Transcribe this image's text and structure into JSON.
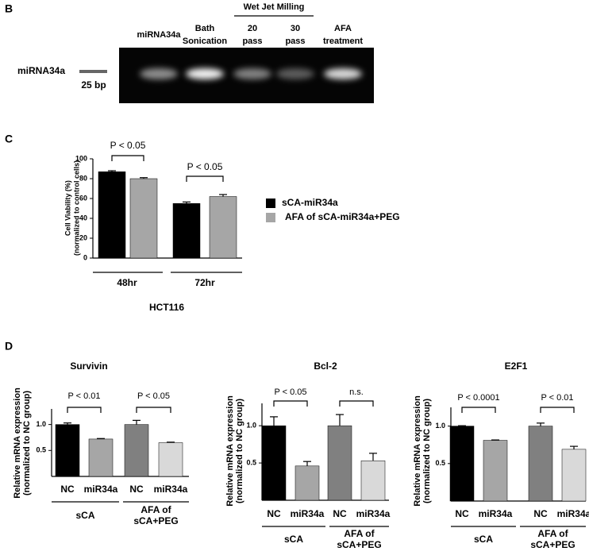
{
  "gel": {
    "label": "B",
    "header": "Wet Jet Milling",
    "lanes": [
      [
        "miRNA34a"
      ],
      [
        "Bath",
        "Sonication"
      ],
      [
        "20",
        "pass"
      ],
      [
        "30",
        "pass"
      ],
      [
        "AFA",
        "treatment"
      ]
    ],
    "marker_label": "miRNA34a",
    "marker_size": "25 bp"
  },
  "chart_data": [
    {
      "type": "bar",
      "panel": "C",
      "ylabel": [
        "Cell Viability (%)",
        "(normalized to control cells)"
      ],
      "xlabel": "HCT116",
      "categories": [
        "48hr",
        "72hr"
      ],
      "series": [
        {
          "name": "sCA-miR34a",
          "color": "#000000",
          "values": [
            87,
            55
          ],
          "errors": [
            1,
            1.5
          ]
        },
        {
          "name": "AFA of sCA-miR34a+PEG",
          "color": "#a6a6a6",
          "values": [
            80,
            62
          ],
          "errors": [
            1,
            2
          ]
        }
      ],
      "ylim": [
        0,
        100
      ],
      "yticks": [
        0,
        20,
        40,
        60,
        80,
        100
      ],
      "annotations": [
        "P < 0.05",
        "P < 0.05"
      ]
    },
    {
      "type": "bar",
      "panel": "D",
      "title": "Survivin",
      "ylabel": [
        "Relative mRNA expression",
        "(normalized to NC group)"
      ],
      "categories": [
        "NC",
        "miR34a",
        "NC",
        "miR34a"
      ],
      "groups": [
        [
          "sCA"
        ],
        [
          "AFA of",
          "sCA+PEG"
        ]
      ],
      "values": [
        1.0,
        0.72,
        1.0,
        0.65
      ],
      "errors": [
        0.03,
        0.01,
        0.08,
        0.01
      ],
      "colors": [
        "#000000",
        "#a6a6a6",
        "#808080",
        "#d9d9d9"
      ],
      "ylim": [
        0,
        1.3
      ],
      "yticks": [
        0.5,
        {
          "value": 1,
          "label": "1.0"
        }
      ],
      "annotations": [
        "P < 0.01",
        "P < 0.05"
      ]
    },
    {
      "type": "bar",
      "title": "Bcl-2",
      "ylabel": [
        "Relative mRNA expression",
        "(normalized to NC group)"
      ],
      "categories": [
        "NC",
        "miR34a",
        "NC",
        "miR34a"
      ],
      "groups": [
        [
          "sCA"
        ],
        [
          "AFA of",
          "sCA+PEG"
        ]
      ],
      "values": [
        1.0,
        0.46,
        1.0,
        0.53
      ],
      "errors": [
        0.12,
        0.06,
        0.15,
        0.1
      ],
      "colors": [
        "#000000",
        "#a6a6a6",
        "#808080",
        "#d9d9d9"
      ],
      "ylim": [
        0,
        1.3
      ],
      "yticks": [
        0.5,
        {
          "value": 1,
          "label": "1.0"
        }
      ],
      "annotations": [
        "P < 0.05",
        "n.s."
      ]
    },
    {
      "type": "bar",
      "title": "E2F1",
      "ylabel": [
        "Relative mRNA expression",
        "(normalized to NC group)"
      ],
      "categories": [
        "NC",
        "miR34a",
        "NC",
        "miR34a"
      ],
      "groups": [
        [
          "sCA"
        ],
        [
          "AFA of",
          "sCA+PEG"
        ]
      ],
      "values": [
        1.0,
        0.81,
        1.0,
        0.69
      ],
      "errors": [
        0.005,
        0.005,
        0.04,
        0.04
      ],
      "colors": [
        "#000000",
        "#a6a6a6",
        "#808080",
        "#d9d9d9"
      ],
      "ylim": [
        0,
        1.25
      ],
      "yticks": [
        0.5,
        {
          "value": 1,
          "label": "1.0"
        }
      ],
      "annotations": [
        "P < 0.0001",
        "P < 0.01"
      ]
    }
  ]
}
